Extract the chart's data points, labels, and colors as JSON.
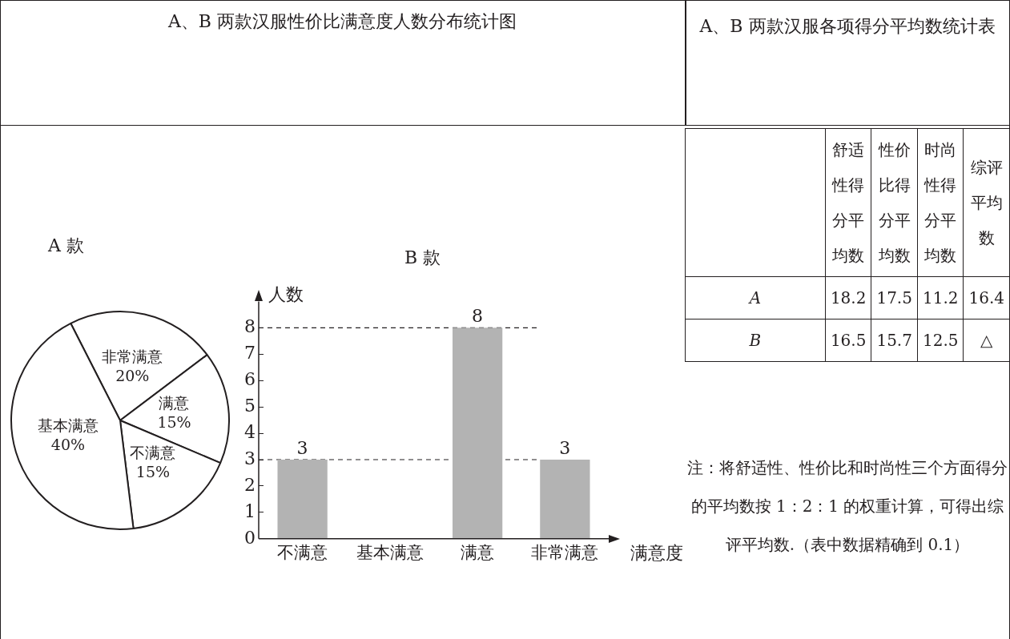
{
  "chart_data": [
    {
      "type": "pie",
      "title": "A、B 两款汉服性价比满意度人数分布统计图",
      "subtitle": "A 款",
      "categories": [
        "非常满意",
        "满意",
        "不满意",
        "基本满意"
      ],
      "values": [
        20,
        15,
        15,
        40
      ],
      "value_labels": [
        "20%",
        "15%",
        "15%",
        "40%"
      ],
      "colors": [
        "#ffffff",
        "#ffffff",
        "#ffffff",
        "#ffffff"
      ],
      "legend": false
    },
    {
      "type": "bar",
      "title": "B 款",
      "xlabel": "满意度",
      "ylabel": "人数",
      "categories": [
        "不满意",
        "基本满意",
        "满意",
        "非常满意"
      ],
      "values": [
        3,
        null,
        8,
        3
      ],
      "color": "#b3b3b3",
      "ylim": [
        0,
        9
      ],
      "yticks": [
        0,
        1,
        2,
        3,
        4,
        5,
        6,
        7,
        8
      ],
      "data_labels": true,
      "legend": false,
      "grid": false,
      "ref_lines": [
        {
          "axis": "y",
          "value": 3,
          "line_style": "dashed"
        },
        {
          "axis": "y",
          "value": 8,
          "line_style": "dashed"
        }
      ]
    },
    {
      "type": "other",
      "title": "A、B 两款汉服各项得分平均数统计表",
      "categories": [
        null,
        "舒适性得分平均数",
        "性价比得分平均数",
        "时尚性得分平均数",
        "综评平均数"
      ],
      "y_categories": [
        "A",
        "B"
      ],
      "cell_labels": [
        [
          "18.2",
          "17.5",
          "11.2",
          "16.4"
        ],
        [
          "16.5",
          "15.7",
          "12.5",
          "△"
        ]
      ],
      "annotations": [
        "注：将舒适性、性价比和时尚性三个方面得分的平均数按 1：2：1 的权重计算，可得出综评平均数.（表中数据精确到 0.1）"
      ]
    }
  ]
}
